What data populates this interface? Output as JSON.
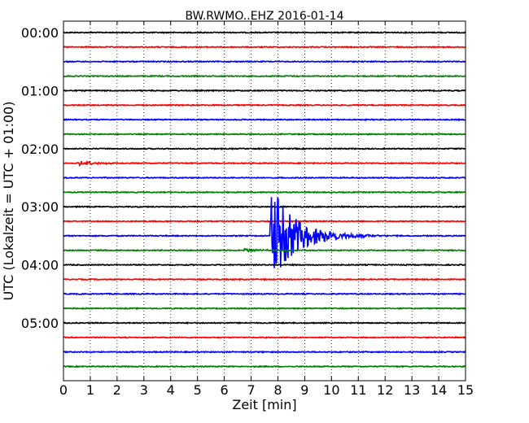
{
  "chart_data": {
    "type": "line",
    "title": "BW.RWMO..EHZ 2016-01-14",
    "xlabel": "Zeit  [min]",
    "ylabel": "UTC (Lokalzeit = UTC + 01:00)",
    "xlim": [
      0,
      15
    ],
    "x_ticks": [
      "0",
      "1",
      "2",
      "3",
      "4",
      "5",
      "6",
      "7",
      "8",
      "9",
      "10",
      "11",
      "12",
      "13",
      "14",
      "15"
    ],
    "y_tick_labels": [
      "00:00",
      "01:00",
      "02:00",
      "03:00",
      "04:00",
      "05:00"
    ],
    "traces_per_hour": 4,
    "trace_count": 24,
    "trace_colors": [
      "#000000",
      "#ff0000",
      "#0000ff",
      "#008000"
    ],
    "grid": "vertical dotted lines at each minute",
    "events": [
      {
        "trace_start": "03:30",
        "onset_min": 7.7,
        "peak_amplitude": 3.5,
        "decay_until_min": 12.0
      },
      {
        "trace_start": "02:15",
        "onset_min": 0.5,
        "peak_amplitude": 0.15,
        "decay_until_min": 1.3
      },
      {
        "trace_start": "03:45",
        "onset_min": 6.7,
        "peak_amplitude": 0.1,
        "decay_until_min": 7.5
      }
    ]
  }
}
